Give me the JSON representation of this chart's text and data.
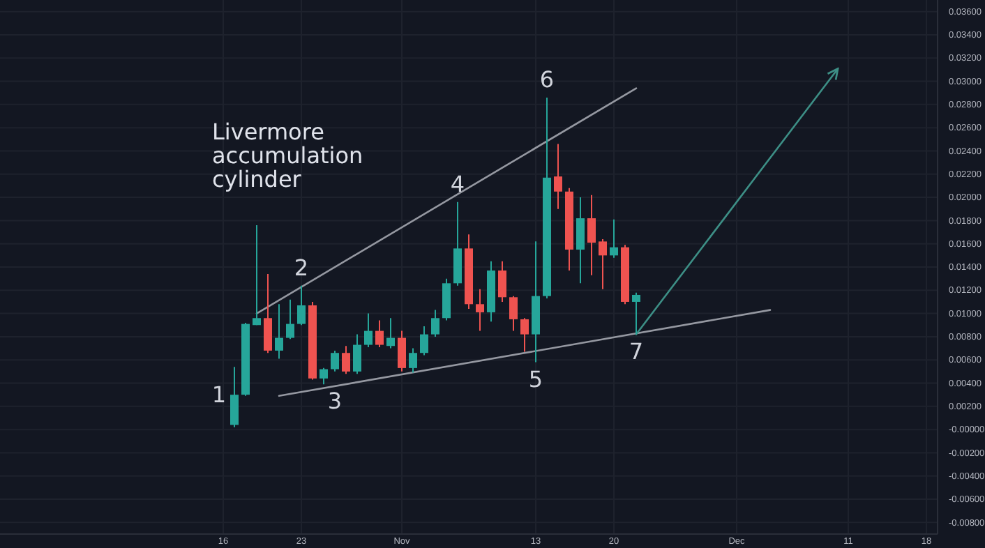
{
  "chart_data": {
    "type": "candlestick",
    "title": "Livermore accumulation cylinder",
    "x": [
      "--10-17",
      "--10-18",
      "--10-19",
      "--10-20",
      "--10-21",
      "--10-22",
      "--10-23",
      "--10-24",
      "--10-25",
      "--10-26",
      "--10-27",
      "--10-28",
      "--10-29",
      "--10-30",
      "--10-31",
      "--11-01",
      "--11-02",
      "--11-03",
      "--11-04",
      "--11-05",
      "--11-06",
      "--11-07",
      "--11-08",
      "--11-09",
      "--11-10",
      "--11-11",
      "--11-12",
      "--11-13",
      "--11-14",
      "--11-15",
      "--11-16",
      "--11-17",
      "--11-18",
      "--11-19",
      "--11-20",
      "--11-21",
      "--11-22"
    ],
    "ohlc": [
      [
        0.0004,
        0.0054,
        0.0002,
        0.003
      ],
      [
        0.003,
        0.0092,
        0.0029,
        0.0091
      ],
      [
        0.009,
        0.0176,
        0.009,
        0.0096
      ],
      [
        0.0096,
        0.0134,
        0.0066,
        0.0068
      ],
      [
        0.0068,
        0.0108,
        0.0061,
        0.0079
      ],
      [
        0.0079,
        0.0112,
        0.0078,
        0.0091
      ],
      [
        0.0091,
        0.0124,
        0.009,
        0.0107
      ],
      [
        0.0107,
        0.011,
        0.0043,
        0.0044
      ],
      [
        0.0044,
        0.0053,
        0.0039,
        0.0052
      ],
      [
        0.0052,
        0.0068,
        0.005,
        0.0066
      ],
      [
        0.0066,
        0.0072,
        0.0048,
        0.005
      ],
      [
        0.005,
        0.0082,
        0.0048,
        0.0073
      ],
      [
        0.0073,
        0.01,
        0.0071,
        0.0085
      ],
      [
        0.0085,
        0.0094,
        0.0071,
        0.0073
      ],
      [
        0.0072,
        0.0096,
        0.007,
        0.0079
      ],
      [
        0.0079,
        0.0085,
        0.005,
        0.0053
      ],
      [
        0.0053,
        0.007,
        0.0049,
        0.0066
      ],
      [
        0.0066,
        0.0089,
        0.0064,
        0.0082
      ],
      [
        0.0082,
        0.0103,
        0.008,
        0.0096
      ],
      [
        0.0096,
        0.013,
        0.0094,
        0.0126
      ],
      [
        0.0126,
        0.0196,
        0.0124,
        0.0156
      ],
      [
        0.0156,
        0.0168,
        0.0104,
        0.0108
      ],
      [
        0.0108,
        0.0121,
        0.0085,
        0.0101
      ],
      [
        0.0101,
        0.0145,
        0.0093,
        0.0137
      ],
      [
        0.0137,
        0.0145,
        0.011,
        0.0114
      ],
      [
        0.0114,
        0.0115,
        0.0085,
        0.0095
      ],
      [
        0.0095,
        0.0096,
        0.0067,
        0.0082
      ],
      [
        0.0082,
        0.0162,
        0.0058,
        0.0115
      ],
      [
        0.0115,
        0.0286,
        0.0113,
        0.0217
      ],
      [
        0.0218,
        0.0246,
        0.019,
        0.0205
      ],
      [
        0.0205,
        0.0208,
        0.0137,
        0.0155
      ],
      [
        0.0155,
        0.02,
        0.0126,
        0.0182
      ],
      [
        0.0182,
        0.0202,
        0.0133,
        0.0161
      ],
      [
        0.0162,
        0.0164,
        0.0121,
        0.015
      ],
      [
        0.015,
        0.0181,
        0.0148,
        0.0157
      ],
      [
        0.0157,
        0.0159,
        0.0108,
        0.011
      ],
      [
        0.011,
        0.0118,
        0.0082,
        0.0116
      ]
    ],
    "colors": [
      "#26a69a",
      "#26a69a",
      "#26a69a",
      "#ef5350",
      "#26a69a",
      "#26a69a",
      "#26a69a",
      "#ef5350",
      "#26a69a",
      "#26a69a",
      "#ef5350",
      "#26a69a",
      "#26a69a",
      "#ef5350",
      "#26a69a",
      "#ef5350",
      "#26a69a",
      "#26a69a",
      "#26a69a",
      "#26a69a",
      "#26a69a",
      "#ef5350",
      "#ef5350",
      "#26a69a",
      "#ef5350",
      "#ef5350",
      "#ef5350",
      "#26a69a",
      "#26a69a",
      "#ef5350",
      "#ef5350",
      "#26a69a",
      "#ef5350",
      "#ef5350",
      "#26a69a",
      "#ef5350",
      "#26a69a"
    ],
    "series": [
      {
        "type": "line",
        "color": "#9598a1",
        "x": [
          "--10-19",
          "--11-22"
        ],
        "values": [
          0.01,
          0.0294
        ]
      },
      {
        "type": "line",
        "color": "#9598a1",
        "x": [
          "--10-21",
          "--12-04"
        ],
        "values": [
          0.0029,
          0.0103
        ]
      },
      {
        "type": "line",
        "color": "#3d8f86",
        "x": [
          "--11-22",
          "--12-10"
        ],
        "values": [
          0.0082,
          0.031
        ]
      }
    ],
    "annotations": [
      {
        "text": "1",
        "x": "--10-17",
        "y": 0.003
      },
      {
        "text": "2",
        "x": "--10-23",
        "y": 0.0124
      },
      {
        "text": "3",
        "x": "--10-26",
        "y": 0.0039
      },
      {
        "text": "4",
        "x": "--11-06",
        "y": 0.0196
      },
      {
        "text": "5",
        "x": "--11-13",
        "y": 0.0058
      },
      {
        "text": "6",
        "x": "--11-14",
        "y": 0.0286
      },
      {
        "text": "7",
        "x": "--11-22",
        "y": 0.0082
      }
    ],
    "xlim": [
      "--09-26",
      "--12-19"
    ],
    "xticks": [
      {
        "value": "--10-16",
        "label": "16"
      },
      {
        "value": "--10-23",
        "label": "23"
      },
      {
        "value": "--11-01",
        "label": "Nov"
      },
      {
        "value": "--11-13",
        "label": "13"
      },
      {
        "value": "--11-20",
        "label": "20"
      },
      {
        "value": "--12-01",
        "label": "Dec"
      },
      {
        "value": "--12-11",
        "label": "11"
      },
      {
        "value": "--12-18",
        "label": "18"
      }
    ],
    "ylim": [
      -0.009,
      0.037
    ],
    "yticks": [
      {
        "value": -0.008,
        "label": "-0.00800"
      },
      {
        "value": -0.006,
        "label": "-0.00600"
      },
      {
        "value": -0.004,
        "label": "-0.00400"
      },
      {
        "value": -0.002,
        "label": "-0.00200"
      },
      {
        "value": 0,
        "label": "-0.00000"
      },
      {
        "value": 0.002,
        "label": "0.00200"
      },
      {
        "value": 0.004,
        "label": "0.00400"
      },
      {
        "value": 0.006,
        "label": "0.00600"
      },
      {
        "value": 0.008,
        "label": "0.00800"
      },
      {
        "value": 0.01,
        "label": "0.01000"
      },
      {
        "value": 0.012,
        "label": "0.01200"
      },
      {
        "value": 0.014,
        "label": "0.01400"
      },
      {
        "value": 0.016,
        "label": "0.01600"
      },
      {
        "value": 0.018,
        "label": "0.01800"
      },
      {
        "value": 0.02,
        "label": "0.02000"
      },
      {
        "value": 0.022,
        "label": "0.02200"
      },
      {
        "value": 0.024,
        "label": "0.02400"
      },
      {
        "value": 0.026,
        "label": "0.02600"
      },
      {
        "value": 0.028,
        "label": "0.02800"
      },
      {
        "value": 0.03,
        "label": "0.03000"
      },
      {
        "value": 0.032,
        "label": "0.03200"
      },
      {
        "value": 0.034,
        "label": "0.03400"
      },
      {
        "value": 0.036,
        "label": "0.03600"
      }
    ],
    "grid": true
  }
}
